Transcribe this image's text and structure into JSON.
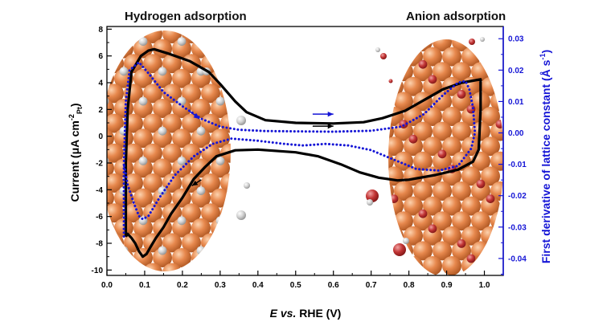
{
  "chart_data": {
    "type": "line",
    "annotations": {
      "left": "Hydrogen adsorption",
      "right": "Anion adsorption"
    },
    "xlabel": {
      "italic": "E",
      "mid": " vs.",
      "rest": " RHE (V)"
    },
    "ylabel": {
      "pre": "Current (",
      "mu": "μ",
      "mid": "A cm",
      "sup": "-2",
      "sub": "Pt",
      "post": ")"
    },
    "y2label": {
      "pre": "First derivative of lattice constant (Å s",
      "sup": "-1",
      "post": ")"
    },
    "xlim": [
      0.0,
      1.05
    ],
    "ylim": [
      -10.4,
      8.2
    ],
    "y2lim": [
      -0.0454,
      0.0339
    ],
    "x_ticks": [
      "0.0",
      "0.1",
      "0.2",
      "0.3",
      "0.4",
      "0.5",
      "0.6",
      "0.7",
      "0.8",
      "0.9",
      "1.0"
    ],
    "y_ticks": [
      "-10",
      "-8",
      "-6",
      "-4",
      "-2",
      "0",
      "2",
      "4",
      "6",
      "8"
    ],
    "y2_ticks": [
      "-0.04",
      "-0.03",
      "-0.02",
      "-0.01",
      "0.00",
      "0.01",
      "0.02",
      "0.03"
    ],
    "colors": {
      "current": "#000000",
      "derivative": "#1515d6",
      "right_axis": "#1515d6",
      "sphere": "#d9773e",
      "adsorbate_gray": "#c8c8c8",
      "adsorbate_red": "#b52a2a"
    },
    "series": [
      {
        "axis": "left",
        "style": "solid",
        "points": [
          [
            0.05,
            -7.5
          ],
          [
            0.05,
            -2
          ],
          [
            0.055,
            2
          ],
          [
            0.065,
            4.8
          ],
          [
            0.09,
            6
          ],
          [
            0.11,
            6.4
          ],
          [
            0.125,
            6.5
          ],
          [
            0.16,
            6.2
          ],
          [
            0.22,
            5.6
          ],
          [
            0.27,
            4.8
          ],
          [
            0.3,
            3.9
          ],
          [
            0.34,
            2.6
          ],
          [
            0.37,
            1.8
          ],
          [
            0.42,
            1.2
          ],
          [
            0.5,
            1.0
          ],
          [
            0.6,
            0.95
          ],
          [
            0.68,
            1.05
          ],
          [
            0.73,
            1.35
          ],
          [
            0.79,
            1.9
          ],
          [
            0.84,
            2.7
          ],
          [
            0.89,
            3.5
          ],
          [
            0.94,
            4.0
          ],
          [
            0.97,
            4.15
          ],
          [
            0.99,
            4.25
          ],
          [
            0.99,
            2
          ],
          [
            0.985,
            -1
          ],
          [
            0.97,
            -1.9
          ],
          [
            0.93,
            -2.5
          ],
          [
            0.87,
            -2.9
          ],
          [
            0.8,
            -3.25
          ],
          [
            0.77,
            -3.3
          ],
          [
            0.72,
            -3.1
          ],
          [
            0.67,
            -2.7
          ],
          [
            0.62,
            -2.1
          ],
          [
            0.56,
            -1.5
          ],
          [
            0.5,
            -1.2
          ],
          [
            0.4,
            -1.0
          ],
          [
            0.34,
            -1.05
          ],
          [
            0.29,
            -1.5
          ],
          [
            0.26,
            -2.3
          ],
          [
            0.23,
            -3.2
          ],
          [
            0.2,
            -4.6
          ],
          [
            0.17,
            -5.8
          ],
          [
            0.15,
            -6.8
          ],
          [
            0.13,
            -7.6
          ],
          [
            0.115,
            -8.3
          ],
          [
            0.105,
            -8.8
          ],
          [
            0.095,
            -9
          ],
          [
            0.085,
            -8.6
          ],
          [
            0.075,
            -8.0
          ],
          [
            0.065,
            -7.6
          ],
          [
            0.055,
            -7.3
          ],
          [
            0.05,
            -7.5
          ]
        ]
      },
      {
        "axis": "right",
        "style": "dotted",
        "points": [
          [
            0.045,
            -0.033
          ],
          [
            0.045,
            -0.01
          ],
          [
            0.05,
            0.01
          ],
          [
            0.06,
            0.02
          ],
          [
            0.085,
            0.0225
          ],
          [
            0.11,
            0.019
          ],
          [
            0.15,
            0.013
          ],
          [
            0.2,
            0.0085
          ],
          [
            0.25,
            0.0045
          ],
          [
            0.3,
            0.002
          ],
          [
            0.35,
            0.001
          ],
          [
            0.42,
            0.0006
          ],
          [
            0.5,
            0.0005
          ],
          [
            0.6,
            0.0004
          ],
          [
            0.7,
            0.0007
          ],
          [
            0.78,
            0.002
          ],
          [
            0.84,
            0.006
          ],
          [
            0.89,
            0.012
          ],
          [
            0.93,
            0.016
          ],
          [
            0.95,
            0.0165
          ],
          [
            0.96,
            0.014
          ],
          [
            0.97,
            0.008
          ],
          [
            0.975,
            0.0
          ],
          [
            0.965,
            -0.005
          ],
          [
            0.93,
            -0.0105
          ],
          [
            0.88,
            -0.012
          ],
          [
            0.82,
            -0.0115
          ],
          [
            0.76,
            -0.0085
          ],
          [
            0.7,
            -0.0055
          ],
          [
            0.64,
            -0.004
          ],
          [
            0.58,
            -0.0035
          ],
          [
            0.52,
            -0.004
          ],
          [
            0.47,
            -0.0035
          ],
          [
            0.4,
            -0.0025
          ],
          [
            0.33,
            -0.0018
          ],
          [
            0.28,
            -0.0035
          ],
          [
            0.23,
            -0.0075
          ],
          [
            0.18,
            -0.0135
          ],
          [
            0.14,
            -0.0205
          ],
          [
            0.11,
            -0.0265
          ],
          [
            0.095,
            -0.0275
          ],
          [
            0.085,
            -0.0265
          ],
          [
            0.07,
            -0.022
          ],
          [
            0.055,
            -0.0165
          ],
          [
            0.045,
            -0.01
          ]
        ]
      }
    ],
    "arrows": [
      {
        "axis": "left",
        "color": "blue",
        "x1": 0.545,
        "y1": 1.65,
        "x2": 0.6,
        "y2": 1.65
      },
      {
        "axis": "left",
        "color": "black",
        "x1": 0.545,
        "y1": 0.75,
        "x2": 0.6,
        "y2": 0.75
      },
      {
        "axis": "left",
        "color": "black",
        "x1": 0.25,
        "y1": -3.25,
        "x2": 0.225,
        "y2": -3.7
      },
      {
        "axis": "left",
        "color": "blue",
        "x1": 0.22,
        "y1": 1.85,
        "x2": 0.245,
        "y2": 1.3
      }
    ]
  }
}
